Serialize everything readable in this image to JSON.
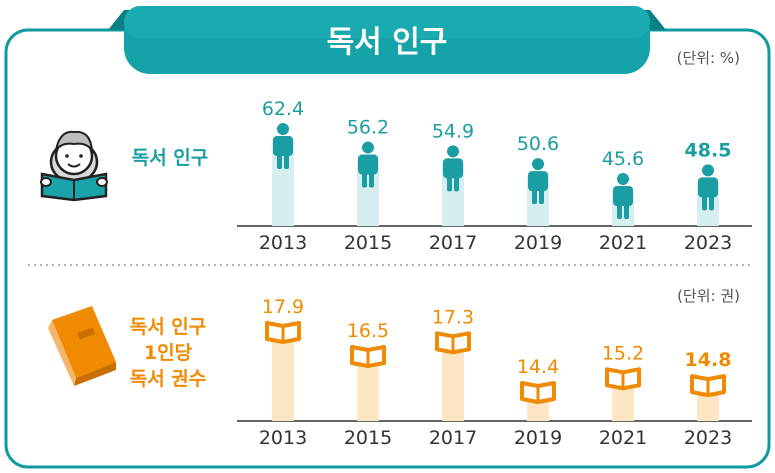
{
  "title": "독서 인구",
  "colors": {
    "teal": "#1a9ea3",
    "teal_dark": "#0e8f95",
    "teal_light": "#d6eef0",
    "orange": "#f08a00",
    "orange_light": "#fde6c4",
    "frame": "#0f9aa0",
    "text_gray": "#555555"
  },
  "chart_data": [
    {
      "type": "bar",
      "label": "독서 인구",
      "unit_note": "(단위: %)",
      "categories": [
        "2013",
        "2015",
        "2017",
        "2019",
        "2021",
        "2023"
      ],
      "values": [
        62.4,
        56.2,
        54.9,
        50.6,
        45.6,
        48.5
      ],
      "value_labels": [
        "62.4",
        "56.2",
        "54.9",
        "50.6",
        "45.6",
        "48.5"
      ],
      "highlight_index": 5,
      "marker_icon": "person-icon",
      "side_icon": "reader-icon"
    },
    {
      "type": "bar",
      "label_lines": [
        "독서 인구",
        "1인당",
        "독서 권수"
      ],
      "unit_note": "(단위: 권)",
      "categories": [
        "2013",
        "2015",
        "2017",
        "2019",
        "2021",
        "2023"
      ],
      "values": [
        17.9,
        16.5,
        17.3,
        14.4,
        15.2,
        14.8
      ],
      "value_labels": [
        "17.9",
        "16.5",
        "17.3",
        "14.4",
        "15.2",
        "14.8"
      ],
      "highlight_index": 5,
      "marker_icon": "book-icon",
      "side_icon": "closed-book-icon"
    }
  ]
}
